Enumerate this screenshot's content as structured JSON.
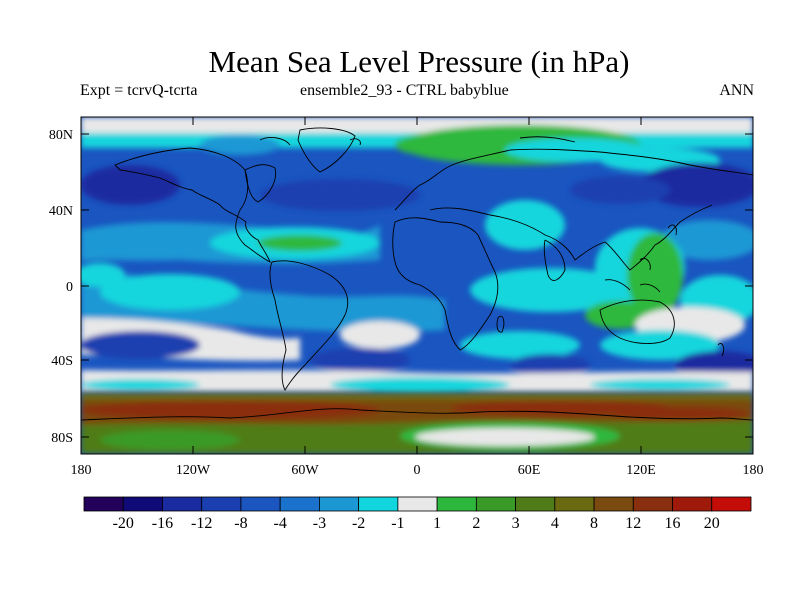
{
  "title": "Mean Sea Level Pressure (in hPa)",
  "subtitle_left": "Expt = tcrvQ-tcrta",
  "subtitle_center": "ensemble2_93 - CTRL babyblue",
  "subtitle_right": "ANN",
  "map": {
    "lat_ticks": [
      "80N",
      "40N",
      "0",
      "40S",
      "80S"
    ],
    "lon_ticks": [
      "180",
      "120W",
      "60W",
      "0",
      "60E",
      "120E",
      "180"
    ]
  },
  "colorbar": {
    "colors": [
      "#23005a",
      "#0f0a78",
      "#1a2aa0",
      "#1a3fb0",
      "#1a55c0",
      "#1a72cc",
      "#1b98d4",
      "#12d6dd",
      "#e8e8e8",
      "#2db83d",
      "#3a9a28",
      "#4f7b18",
      "#6b6a12",
      "#7a4a10",
      "#8a2e10",
      "#a01a0c",
      "#c40c08"
    ],
    "labels": [
      "-20",
      "-16",
      "-12",
      "-8",
      "-4",
      "-3",
      "-2",
      "-1",
      "1",
      "2",
      "3",
      "4",
      "8",
      "12",
      "16",
      "20"
    ]
  }
}
